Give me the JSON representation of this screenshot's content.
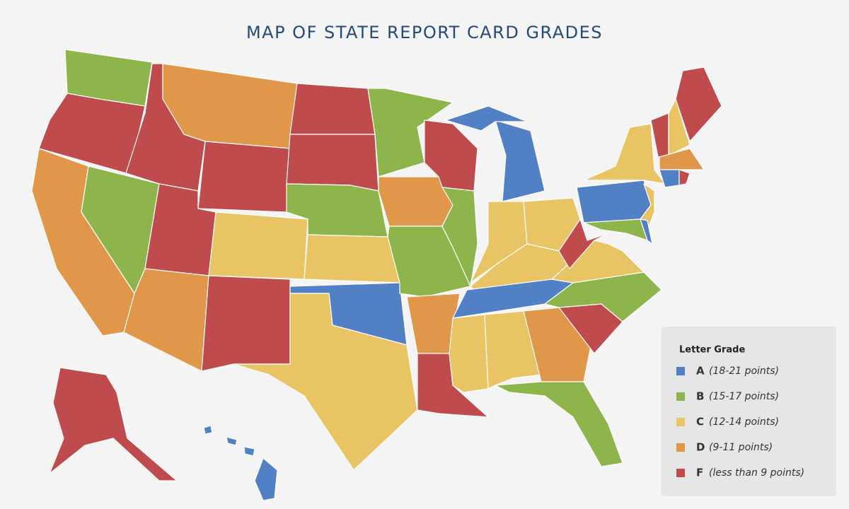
{
  "title": "MAP OF STATE REPORT CARD GRADES",
  "legend": {
    "heading": "Letter Grade",
    "items": [
      {
        "grade": "A",
        "range": "(18-21 points)",
        "color": "#5280c4"
      },
      {
        "grade": "B",
        "range": "(15-17 points)",
        "color": "#8db54b"
      },
      {
        "grade": "C",
        "range": "(12-14 points)",
        "color": "#e8c465"
      },
      {
        "grade": "D",
        "range": "(9-11 points)",
        "color": "#e0974a"
      },
      {
        "grade": "F",
        "range": "(less than 9 points)",
        "color": "#c04b4d"
      }
    ]
  }
}
